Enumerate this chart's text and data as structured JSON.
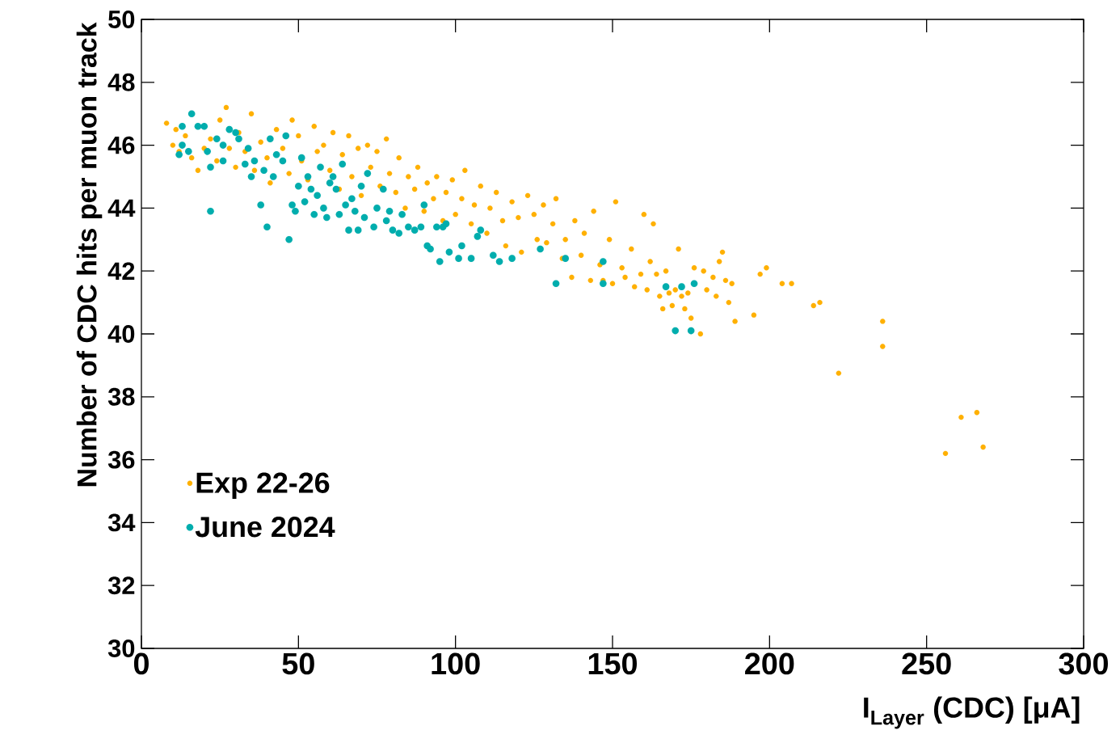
{
  "chart_data": {
    "type": "scatter",
    "xlabel": "I$_{Layer}$ (CDC) [μA]",
    "ylabel": "Number of CDC hits per muon track",
    "xlim": [
      0,
      300
    ],
    "ylim": [
      30,
      50
    ],
    "xticks": [
      0,
      50,
      100,
      150,
      200,
      250,
      300
    ],
    "yticks": [
      30,
      32,
      34,
      36,
      38,
      40,
      42,
      44,
      46,
      48,
      50
    ],
    "legend": "bottom left",
    "marker": "circle",
    "series": [
      {
        "name": "Exp 22-26",
        "color": "#ffb000",
        "x": [
          8,
          10,
          11,
          12,
          14,
          16,
          18,
          20,
          22,
          24,
          25,
          27,
          28,
          30,
          31,
          33,
          35,
          36,
          38,
          40,
          41,
          43,
          45,
          47,
          48,
          50,
          51,
          53,
          55,
          56,
          58,
          60,
          61,
          63,
          64,
          66,
          67,
          69,
          70,
          72,
          73,
          75,
          76,
          78,
          79,
          81,
          82,
          84,
          85,
          87,
          88,
          90,
          91,
          93,
          94,
          96,
          97,
          99,
          100,
          102,
          103,
          105,
          106,
          108,
          110,
          111,
          113,
          115,
          116,
          118,
          120,
          121,
          123,
          125,
          126,
          128,
          129,
          131,
          132,
          134,
          135,
          137,
          138,
          140,
          141,
          143,
          144,
          146,
          147,
          149,
          150,
          151,
          153,
          154,
          156,
          157,
          159,
          160,
          161,
          162,
          163,
          164,
          165,
          166,
          167,
          168,
          169,
          170,
          171,
          172,
          173,
          174,
          175,
          176,
          178,
          179,
          180,
          182,
          183,
          184,
          185,
          186,
          187,
          188,
          189,
          195,
          197,
          199,
          204,
          207,
          214,
          216,
          222,
          236,
          236,
          256,
          261,
          266,
          268
        ],
        "values": [
          46.7,
          46.0,
          46.5,
          45.8,
          46.3,
          45.6,
          45.2,
          45.9,
          46.2,
          45.5,
          46.8,
          47.2,
          45.9,
          45.3,
          46.4,
          45.8,
          47.0,
          45.2,
          46.1,
          45.6,
          44.8,
          46.5,
          45.9,
          45.1,
          46.8,
          46.3,
          45.5,
          44.9,
          46.6,
          45.8,
          46.0,
          45.2,
          46.4,
          44.6,
          45.7,
          46.3,
          45.0,
          45.9,
          44.4,
          46.0,
          45.3,
          45.8,
          44.7,
          46.2,
          45.1,
          44.5,
          45.6,
          44.0,
          45.0,
          44.6,
          45.3,
          43.9,
          44.8,
          44.3,
          45.0,
          43.6,
          44.5,
          44.9,
          43.8,
          44.3,
          45.2,
          43.5,
          44.1,
          44.7,
          43.2,
          44.0,
          44.5,
          43.6,
          42.8,
          44.2,
          43.7,
          42.6,
          44.4,
          43.8,
          43.0,
          44.1,
          42.9,
          43.5,
          44.3,
          42.4,
          43.0,
          41.8,
          43.6,
          42.5,
          43.2,
          41.7,
          43.9,
          42.2,
          41.7,
          43.0,
          41.6,
          44.2,
          42.1,
          41.8,
          42.7,
          41.5,
          41.9,
          43.8,
          41.4,
          42.3,
          43.5,
          41.9,
          41.2,
          40.8,
          42.0,
          41.3,
          40.9,
          41.4,
          42.7,
          41.2,
          40.8,
          41.3,
          40.5,
          42.1,
          40.0,
          42.0,
          41.4,
          41.8,
          41.2,
          42.3,
          42.6,
          41.7,
          41.0,
          41.6,
          40.4,
          40.6,
          41.9,
          42.1,
          41.6,
          41.6,
          40.9,
          41.0,
          38.75,
          40.4,
          39.6,
          36.2,
          37.35,
          37.5,
          36.4
        ]
      },
      {
        "name": "June 2024",
        "color": "#00adad",
        "x": [
          12,
          13,
          13,
          15,
          16,
          18,
          20,
          21,
          22,
          22,
          24,
          26,
          26,
          28,
          30,
          31,
          33,
          34,
          35,
          36,
          38,
          39,
          40,
          41,
          42,
          43,
          45,
          46,
          47,
          48,
          49,
          50,
          51,
          52,
          53,
          54,
          55,
          56,
          57,
          58,
          59,
          60,
          61,
          62,
          63,
          64,
          65,
          66,
          67,
          68,
          69,
          70,
          71,
          72,
          74,
          75,
          77,
          78,
          79,
          80,
          82,
          83,
          85,
          87,
          89,
          90,
          91,
          92,
          94,
          95,
          96,
          97,
          98,
          101,
          102,
          105,
          107,
          108,
          112,
          114,
          118,
          127,
          132,
          135,
          147,
          147,
          167,
          170,
          172,
          175,
          176
        ],
        "values": [
          45.7,
          46.0,
          46.6,
          45.8,
          47.0,
          46.6,
          46.6,
          45.8,
          43.9,
          45.3,
          46.2,
          46.0,
          45.5,
          46.5,
          46.4,
          46.2,
          45.4,
          45.9,
          45.0,
          45.5,
          44.1,
          45.2,
          43.4,
          46.2,
          45.0,
          45.7,
          45.5,
          46.3,
          43.0,
          44.1,
          43.9,
          44.7,
          45.6,
          44.2,
          45.0,
          44.6,
          43.8,
          44.4,
          45.3,
          44.0,
          43.7,
          44.8,
          45.0,
          44.6,
          43.8,
          45.4,
          44.1,
          43.3,
          44.3,
          43.9,
          43.3,
          44.7,
          43.7,
          45.1,
          43.4,
          44.0,
          44.6,
          43.6,
          43.9,
          43.3,
          43.2,
          43.8,
          43.4,
          43.3,
          43.4,
          44.1,
          42.8,
          42.7,
          43.4,
          42.3,
          43.4,
          43.5,
          42.6,
          42.4,
          42.8,
          42.4,
          43.1,
          43.3,
          42.5,
          42.3,
          42.4,
          42.7,
          41.6,
          42.4,
          41.6,
          42.3,
          41.5,
          40.1,
          41.5,
          40.1,
          41.6
        ]
      }
    ]
  }
}
